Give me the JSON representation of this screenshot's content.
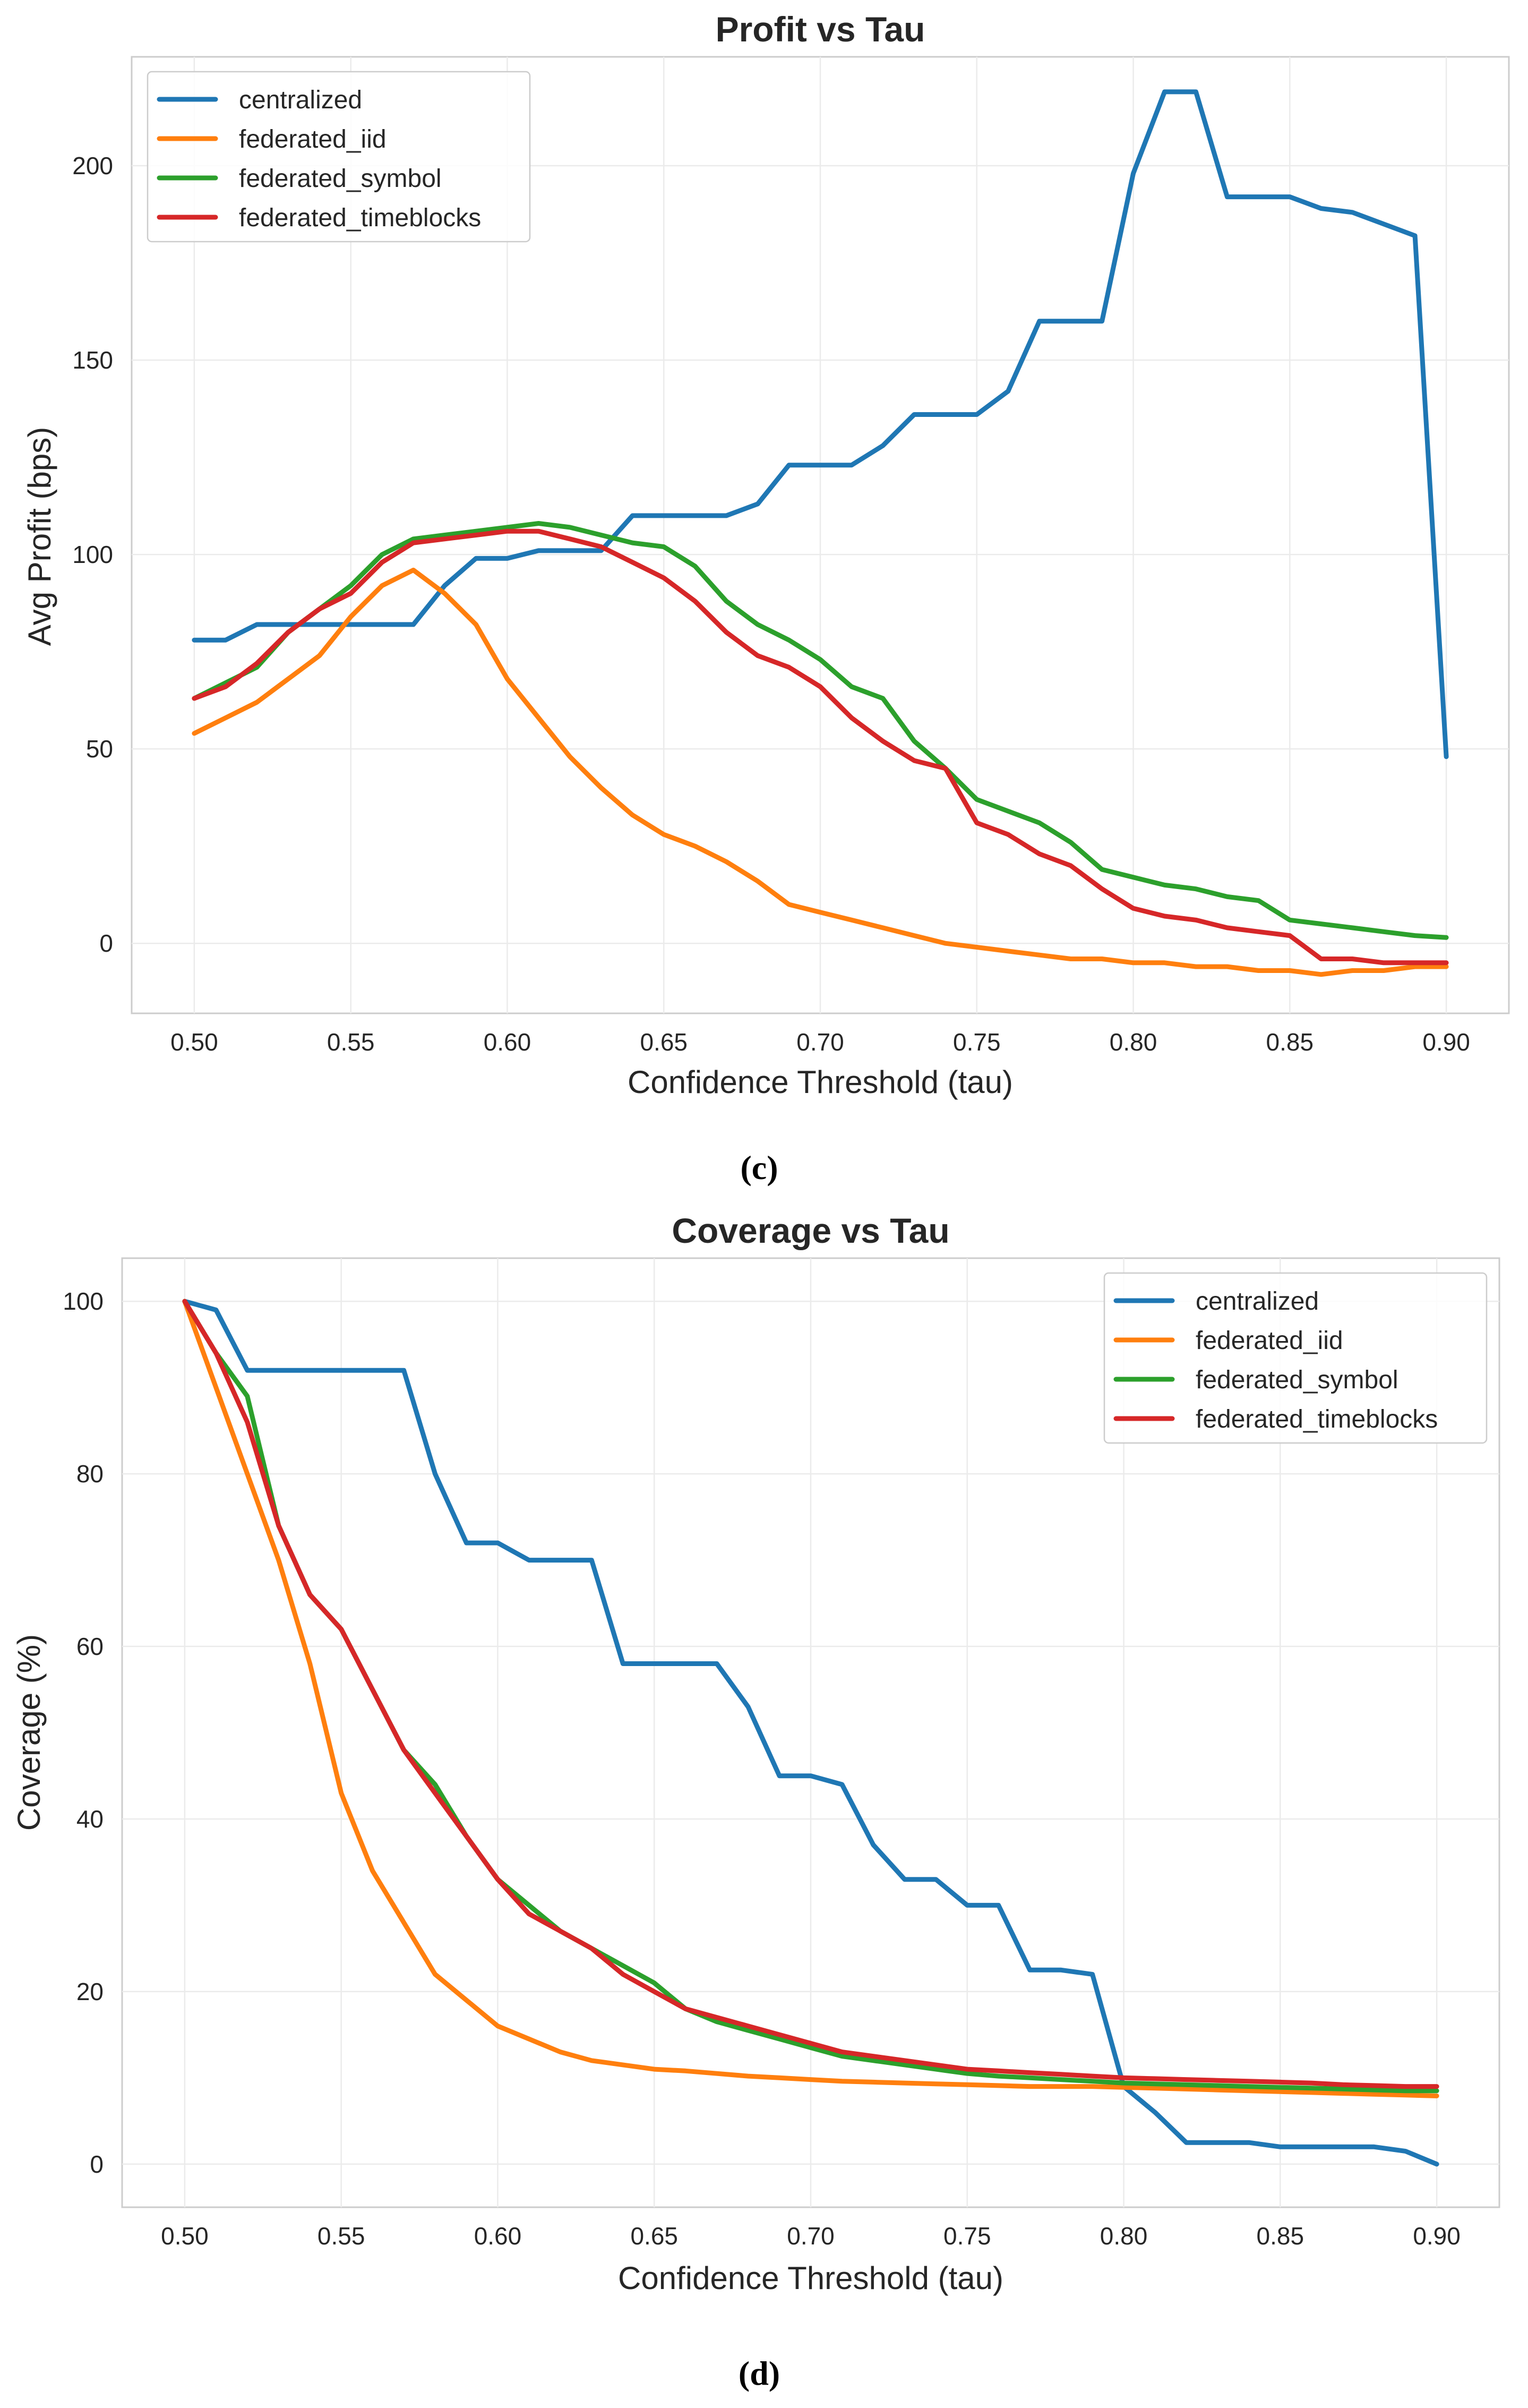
{
  "colors": {
    "centralized": "#1f77b4",
    "federated_iid": "#ff7f0e",
    "federated_symbol": "#2ca02c",
    "federated_timeblocks": "#d62728"
  },
  "chart_data": [
    {
      "type": "line",
      "title": "Profit vs Tau",
      "xlabel": "Confidence Threshold (tau)",
      "ylabel": "Avg Profit (bps)",
      "caption": "(c)",
      "xlim": [
        0.48,
        0.92
      ],
      "ylim": [
        -18,
        228
      ],
      "xticks": [
        "0.50",
        "0.55",
        "0.60",
        "0.65",
        "0.70",
        "0.75",
        "0.80",
        "0.85",
        "0.90"
      ],
      "yticks": [
        "0",
        "50",
        "100",
        "150",
        "200"
      ],
      "grid": true,
      "legend_position": "top-left",
      "x": [
        0.5,
        0.51,
        0.52,
        0.53,
        0.54,
        0.55,
        0.56,
        0.57,
        0.58,
        0.59,
        0.6,
        0.61,
        0.62,
        0.63,
        0.64,
        0.65,
        0.66,
        0.67,
        0.68,
        0.69,
        0.7,
        0.71,
        0.72,
        0.73,
        0.74,
        0.75,
        0.76,
        0.77,
        0.78,
        0.79,
        0.8,
        0.81,
        0.82,
        0.83,
        0.84,
        0.85,
        0.86,
        0.87,
        0.88,
        0.89,
        0.9
      ],
      "series": [
        {
          "name": "centralized",
          "values": [
            78,
            78,
            82,
            82,
            82,
            82,
            82,
            82,
            92,
            99,
            99,
            101,
            101,
            101,
            110,
            110,
            110,
            110,
            113,
            123,
            123,
            123,
            128,
            136,
            136,
            136,
            142,
            160,
            160,
            160,
            198,
            219,
            219,
            192,
            192,
            192,
            189,
            188,
            185,
            182,
            48
          ]
        },
        {
          "name": "federated_iid",
          "values": [
            54,
            58,
            62,
            68,
            74,
            84,
            92,
            96,
            90,
            82,
            68,
            58,
            48,
            40,
            33,
            28,
            25,
            21,
            16,
            10,
            8,
            6,
            4,
            2,
            0,
            -1,
            -2,
            -3,
            -4,
            -4,
            -5,
            -5,
            -6,
            -6,
            -7,
            -7,
            -8,
            -7,
            -7,
            -6,
            -6
          ]
        },
        {
          "name": "federated_symbol",
          "values": [
            63,
            67,
            71,
            80,
            86,
            92,
            100,
            104,
            105,
            106,
            107,
            108,
            107,
            105,
            103,
            102,
            97,
            88,
            82,
            78,
            73,
            66,
            63,
            52,
            45,
            37,
            34,
            31,
            26,
            19,
            17,
            15,
            14,
            12,
            11,
            6,
            5,
            4,
            3,
            2,
            1.5
          ]
        },
        {
          "name": "federated_timeblocks",
          "values": [
            63,
            66,
            72,
            80,
            86,
            90,
            98,
            103,
            104,
            105,
            106,
            106,
            104,
            102,
            98,
            94,
            88,
            80,
            74,
            71,
            66,
            58,
            52,
            47,
            45,
            31,
            28,
            23,
            20,
            14,
            9,
            7,
            6,
            4,
            3,
            2,
            -4,
            -4,
            -5,
            -5,
            -5
          ]
        }
      ]
    },
    {
      "type": "line",
      "title": "Coverage vs Tau",
      "xlabel": "Confidence Threshold (tau)",
      "ylabel": "Coverage (%)",
      "caption": "(d)",
      "xlim": [
        0.48,
        0.92
      ],
      "ylim": [
        -5,
        105
      ],
      "xticks": [
        "0.50",
        "0.55",
        "0.60",
        "0.65",
        "0.70",
        "0.75",
        "0.80",
        "0.85",
        "0.90"
      ],
      "yticks": [
        "0",
        "20",
        "40",
        "60",
        "80",
        "100"
      ],
      "grid": true,
      "legend_position": "top-right",
      "x": [
        0.5,
        0.51,
        0.52,
        0.53,
        0.54,
        0.55,
        0.56,
        0.57,
        0.58,
        0.59,
        0.6,
        0.61,
        0.62,
        0.63,
        0.64,
        0.65,
        0.66,
        0.67,
        0.68,
        0.69,
        0.7,
        0.71,
        0.72,
        0.73,
        0.74,
        0.75,
        0.76,
        0.77,
        0.78,
        0.79,
        0.8,
        0.81,
        0.82,
        0.83,
        0.84,
        0.85,
        0.86,
        0.87,
        0.88,
        0.89,
        0.9
      ],
      "series": [
        {
          "name": "centralized",
          "values": [
            100,
            99,
            92,
            92,
            92,
            92,
            92,
            92,
            80,
            72,
            72,
            70,
            70,
            70,
            58,
            58,
            58,
            58,
            53,
            45,
            45,
            44,
            37,
            33,
            33,
            30,
            30,
            22.5,
            22.5,
            22,
            9,
            6,
            2.5,
            2.5,
            2.5,
            2,
            2,
            2,
            2,
            1.5,
            0
          ]
        },
        {
          "name": "federated_iid",
          "values": [
            100,
            90,
            80,
            70,
            58,
            43,
            34,
            28,
            22,
            19,
            16,
            14.5,
            13,
            12,
            11.5,
            11,
            10.8,
            10.5,
            10.2,
            10,
            9.8,
            9.6,
            9.5,
            9.4,
            9.3,
            9.2,
            9.1,
            9.0,
            9.0,
            9.0,
            8.9,
            8.8,
            8.7,
            8.6,
            8.5,
            8.4,
            8.3,
            8.2,
            8.1,
            8.0,
            7.9
          ]
        },
        {
          "name": "federated_symbol",
          "values": [
            100,
            94,
            89,
            74,
            66,
            62,
            55,
            48,
            44,
            38,
            33,
            30,
            27,
            25,
            23,
            21,
            18,
            16.5,
            15.5,
            14.5,
            13.5,
            12.5,
            12,
            11.5,
            11,
            10.5,
            10.2,
            10,
            9.8,
            9.6,
            9.4,
            9.3,
            9.2,
            9.1,
            9.0,
            8.9,
            8.8,
            8.7,
            8.6,
            8.5,
            8.5
          ]
        },
        {
          "name": "federated_timeblocks",
          "values": [
            100,
            94,
            86,
            74,
            66,
            62,
            55,
            48,
            43,
            38,
            33,
            29,
            27,
            25,
            22,
            20,
            18,
            17,
            16,
            15,
            14,
            13,
            12.5,
            12,
            11.5,
            11,
            10.8,
            10.6,
            10.4,
            10.2,
            10,
            9.9,
            9.8,
            9.7,
            9.6,
            9.5,
            9.4,
            9.2,
            9.1,
            9.0,
            9.0
          ]
        }
      ]
    }
  ]
}
